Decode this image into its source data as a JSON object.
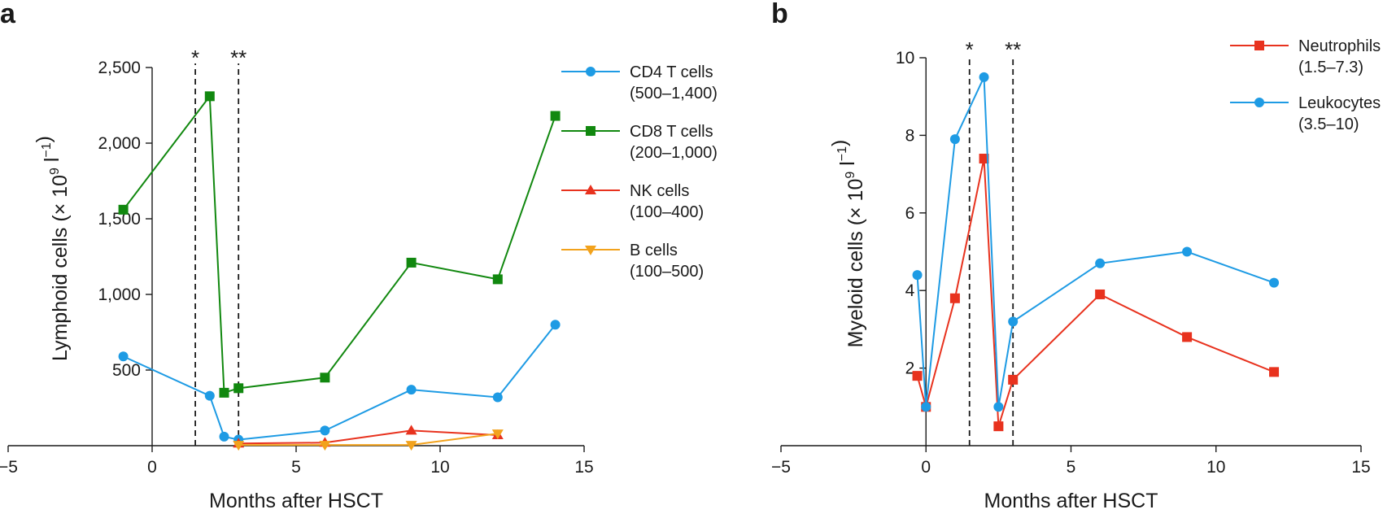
{
  "figure": {
    "panels": [
      "a",
      "b"
    ]
  },
  "chart_data": [
    {
      "panel": "a",
      "type": "line",
      "xlabel": "Months after HSCT",
      "ylabel": "Lymphoid cells (× 10^9 l^-1)",
      "xlim": [
        -5,
        15
      ],
      "ylim": [
        0,
        2500
      ],
      "xticks": [
        -5,
        0,
        5,
        10,
        15
      ],
      "xtick_labels": [
        "−5",
        "0",
        "5",
        "10",
        "15"
      ],
      "yticks": [
        500,
        1000,
        1500,
        2000,
        2500
      ],
      "ytick_labels": [
        "500",
        "1,000",
        "1,500",
        "2,000",
        "2,500"
      ],
      "vlines": [
        {
          "x": 1.5,
          "label": "*"
        },
        {
          "x": 3.0,
          "label": "**"
        }
      ],
      "legend_position": "right",
      "series": [
        {
          "name": "CD4 T cells",
          "range": "(500–1,400)",
          "color": "#1e9be4",
          "marker": "circle",
          "x": [
            -1,
            2,
            2.5,
            3,
            6,
            9,
            12,
            14
          ],
          "y": [
            590,
            330,
            60,
            40,
            100,
            370,
            320,
            800
          ]
        },
        {
          "name": "CD8 T cells",
          "range": "(200–1,000)",
          "color": "#11880f",
          "marker": "square",
          "x": [
            -1,
            2,
            2.5,
            3,
            6,
            9,
            12,
            14
          ],
          "y": [
            1560,
            2310,
            350,
            380,
            450,
            1210,
            1100,
            2180
          ]
        },
        {
          "name": "NK cells",
          "range": "(100–400)",
          "color": "#e8321e",
          "marker": "triangle-up",
          "x": [
            3,
            6,
            9,
            12
          ],
          "y": [
            15,
            20,
            100,
            70
          ]
        },
        {
          "name": "B cells",
          "range": "(100–500)",
          "color": "#f2a21c",
          "marker": "triangle-down",
          "x": [
            3,
            6,
            9,
            12
          ],
          "y": [
            5,
            5,
            5,
            80
          ]
        }
      ]
    },
    {
      "panel": "b",
      "type": "line",
      "xlabel": "Months after HSCT",
      "ylabel": "Myeloid cells (× 10^9 l^-1)",
      "xlim": [
        -5,
        15
      ],
      "ylim": [
        0,
        10
      ],
      "xticks": [
        -5,
        0,
        5,
        10,
        15
      ],
      "xtick_labels": [
        "−5",
        "0",
        "5",
        "10",
        "15"
      ],
      "yticks": [
        2,
        4,
        6,
        8,
        10
      ],
      "ytick_labels": [
        "2",
        "4",
        "6",
        "8",
        "10"
      ],
      "vlines": [
        {
          "x": 1.5,
          "label": "*"
        },
        {
          "x": 3.0,
          "label": "**"
        }
      ],
      "legend_position": "top-right",
      "series": [
        {
          "name": "Neutrophils",
          "range": "(1.5–7.3)",
          "color": "#e8321e",
          "marker": "square",
          "x": [
            -0.3,
            0,
            1,
            2,
            2.5,
            3,
            6,
            9,
            12
          ],
          "y": [
            1.8,
            1.0,
            3.8,
            7.4,
            0.5,
            1.7,
            3.9,
            2.8,
            1.9
          ]
        },
        {
          "name": "Leukocytes",
          "range": "(3.5–10)",
          "color": "#1e9be4",
          "marker": "circle",
          "x": [
            -0.3,
            0,
            1,
            2,
            2.5,
            3,
            6,
            9,
            12
          ],
          "y": [
            4.4,
            1.0,
            7.9,
            9.5,
            1.0,
            3.2,
            4.7,
            5.0,
            4.2
          ]
        }
      ]
    }
  ]
}
